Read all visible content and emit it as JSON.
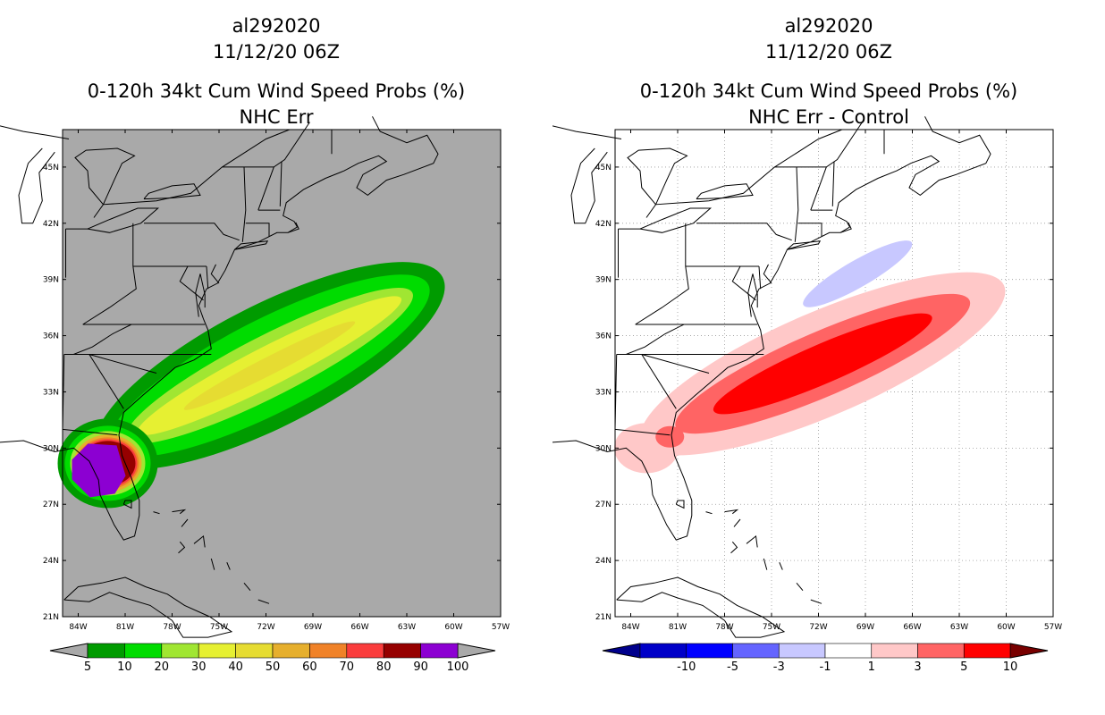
{
  "panels": [
    {
      "storm_id": "al292020",
      "datetime": "11/12/20 06Z",
      "title": "0-120h 34kt Cum Wind Speed Probs (%)",
      "subtitle": "NHC Err"
    },
    {
      "storm_id": "al292020",
      "datetime": "11/12/20 06Z",
      "title": "0-120h 34kt Cum Wind Speed Probs (%)",
      "subtitle": "NHC Err - Control"
    }
  ],
  "chart_data": [
    {
      "type": "heatmap",
      "title": "0-120h 34kt Cum Wind Speed Probs (%)",
      "subtitle": "NHC Err",
      "xlabel": "",
      "ylabel": "",
      "x_ticks": [
        "84W",
        "81W",
        "78W",
        "75W",
        "72W",
        "69W",
        "66W",
        "63W",
        "60W",
        "57W"
      ],
      "y_ticks": [
        "21N",
        "24N",
        "27N",
        "30N",
        "33N",
        "36N",
        "39N",
        "42N",
        "45N"
      ],
      "xlim": [
        -85,
        -57
      ],
      "ylim": [
        21,
        47
      ],
      "grid": false,
      "background": "#a9a9a9",
      "colorbar": {
        "labels": [
          "5",
          "10",
          "20",
          "30",
          "40",
          "50",
          "60",
          "70",
          "80",
          "90",
          "100"
        ],
        "colors": [
          "#009b00",
          "#00dc00",
          "#a0e632",
          "#e6f032",
          "#e6dc32",
          "#e6af2d",
          "#f08228",
          "#fa3c3c",
          "#960000",
          "#8c00d2"
        ],
        "under_color": "#a9a9a9",
        "over_color": "#a9a9a9"
      },
      "swath": {
        "axis_start": [
          -82.8,
          28.9
        ],
        "axis_bend": [
          -79.5,
          31.2
        ],
        "axis_end": [
          -64.5,
          37.6
        ],
        "levels": [
          5,
          10,
          20,
          30,
          40,
          50,
          60,
          70,
          80,
          90
        ]
      }
    },
    {
      "type": "heatmap",
      "title": "0-120h 34kt Cum Wind Speed Probs (%)",
      "subtitle": "NHC Err - Control",
      "xlabel": "",
      "ylabel": "",
      "x_ticks": [
        "84W",
        "81W",
        "78W",
        "75W",
        "72W",
        "69W",
        "66W",
        "63W",
        "60W",
        "57W"
      ],
      "y_ticks": [
        "21N",
        "24N",
        "27N",
        "30N",
        "33N",
        "36N",
        "39N",
        "42N",
        "45N"
      ],
      "xlim": [
        -85,
        -57
      ],
      "ylim": [
        21,
        47
      ],
      "grid": true,
      "background": "#ffffff",
      "colorbar": {
        "labels": [
          "-10",
          "-5",
          "-3",
          "-1",
          "1",
          "3",
          "5",
          "10"
        ],
        "colors": [
          "#0000c8",
          "#0000ff",
          "#6464ff",
          "#c8c8ff",
          "#ffffff",
          "#ffc8c8",
          "#ff6464",
          "#ff0000"
        ],
        "under_color": "#00008c",
        "over_color": "#780000"
      },
      "difference": {
        "positive_levels": [
          1,
          3,
          5
        ],
        "negative_levels": [
          -1
        ],
        "negative_region_center": [
          -69.5,
          39.3
        ]
      }
    }
  ]
}
